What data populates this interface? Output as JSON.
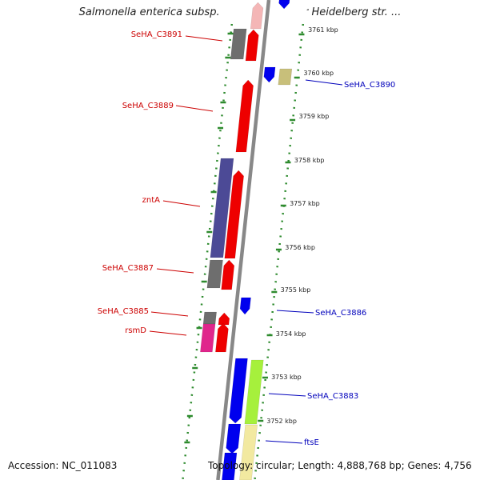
{
  "title": "Salmonella enterica subsp. enterica serovar Heidelberg str. ...",
  "accession": "Accession: NC_011083",
  "summary": "Topology: circular; Length: 4,888,768 bp; Genes: 4,756",
  "colors": {
    "backbone": "#888888",
    "dots": "#2e8b2e",
    "forward_label": "#cc0000",
    "reverse_label": "#0000bb",
    "red": "#ee0000",
    "pink": "#f4b6b6",
    "gray": "#6e6e6e",
    "navy": "#4c4a96",
    "magenta": "#e0268c",
    "blue": "#0000ee",
    "khaki": "#c8bf7a",
    "lime": "#a6f03c",
    "paleyellow": "#f2e9a0"
  },
  "ticks": [
    {
      "label": "3761 kbp"
    },
    {
      "label": "3760 kbp"
    },
    {
      "label": "3759 kbp"
    },
    {
      "label": "3758 kbp"
    },
    {
      "label": "3757 kbp"
    },
    {
      "label": "3756 kbp"
    },
    {
      "label": "3755 kbp"
    },
    {
      "label": "3754 kbp"
    },
    {
      "label": "3753 kbp"
    },
    {
      "label": "3752 kbp"
    }
  ],
  "gene_labels": [
    {
      "text": "SeHA_C3891",
      "strand": "forward"
    },
    {
      "text": "SeHA_C3890",
      "strand": "reverse"
    },
    {
      "text": "SeHA_C3889",
      "strand": "forward"
    },
    {
      "text": "zntA",
      "strand": "forward"
    },
    {
      "text": "SeHA_C3887",
      "strand": "forward"
    },
    {
      "text": "SeHA_C3886",
      "strand": "reverse"
    },
    {
      "text": "SeHA_C3885",
      "strand": "forward"
    },
    {
      "text": "rsmD",
      "strand": "forward"
    },
    {
      "text": "SeHA_C3883",
      "strand": "reverse"
    },
    {
      "text": "ftsE",
      "strand": "reverse"
    }
  ]
}
